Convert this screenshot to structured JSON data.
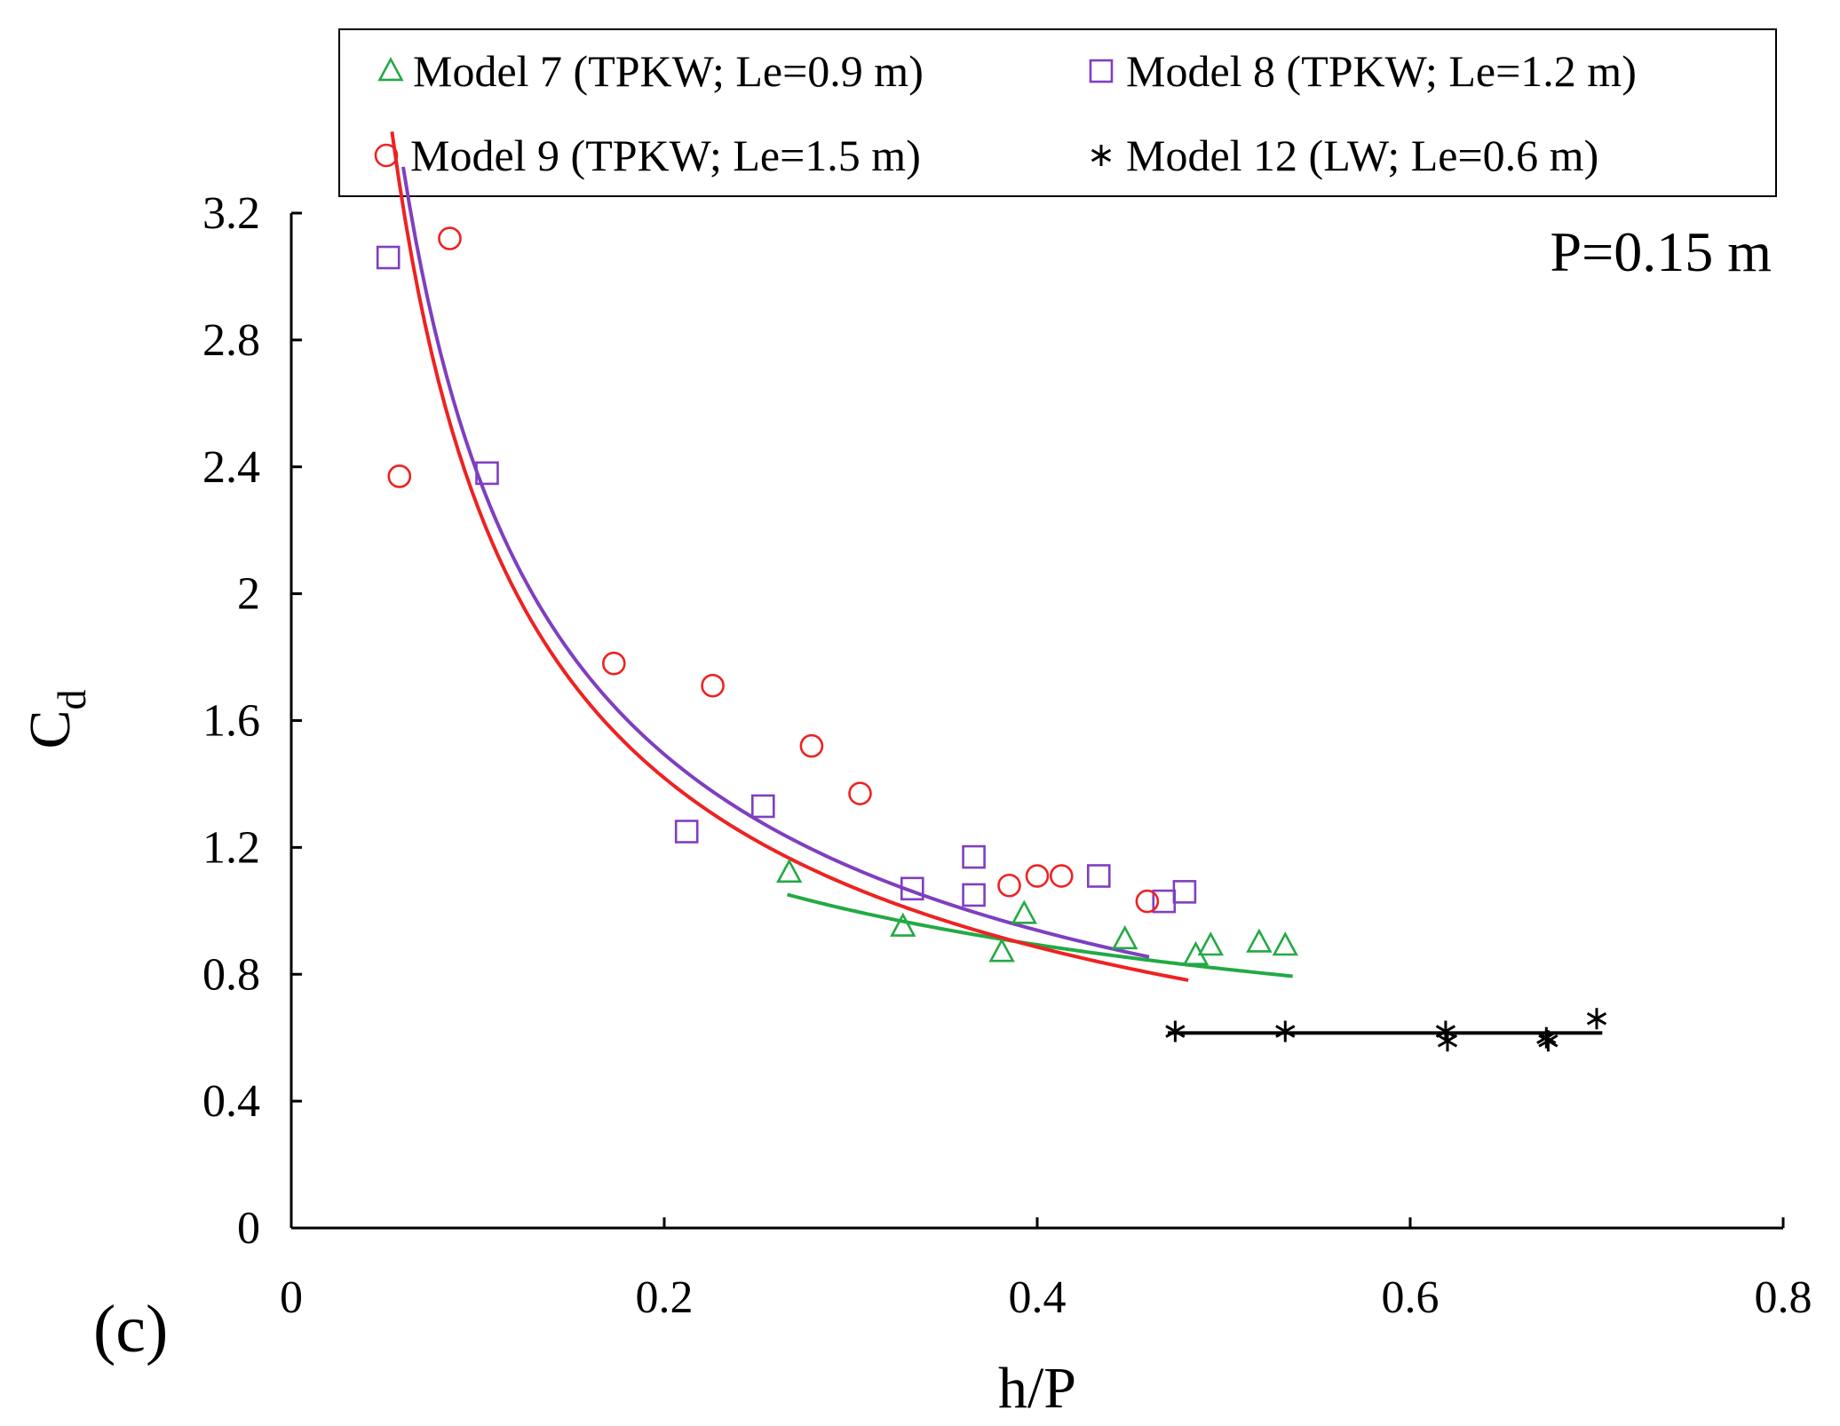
{
  "chart_data": {
    "type": "scatter",
    "panel_label": "(c)",
    "annotation": "P=0.15 m",
    "xlabel": "h/P",
    "ylabel_main": "C",
    "ylabel_sub": "d",
    "xlim": [
      0,
      0.8
    ],
    "ylim": [
      0,
      3.2
    ],
    "xticks": [
      0,
      0.2,
      0.4,
      0.6,
      0.8
    ],
    "xtick_labels": [
      "0",
      "0.2",
      "0.4",
      "0.6",
      "0.8"
    ],
    "yticks": [
      0,
      0.4,
      0.8,
      1.2,
      1.6,
      2,
      2.4,
      2.8,
      3.2
    ],
    "ytick_labels": [
      "0",
      "0.4",
      "0.8",
      "1.2",
      "1.6",
      "2",
      "2.4",
      "2.8",
      "3.2"
    ],
    "legend_location": "top",
    "series": [
      {
        "id": "model7",
        "name": "Model 7 (TPKW; Le=0.9 m)",
        "marker": "triangle",
        "color": "#22aa44",
        "points": [
          [
            0.267,
            1.12
          ],
          [
            0.328,
            0.95
          ],
          [
            0.381,
            0.87
          ],
          [
            0.393,
            0.99
          ],
          [
            0.447,
            0.91
          ],
          [
            0.485,
            0.86
          ],
          [
            0.493,
            0.89
          ],
          [
            0.519,
            0.9
          ],
          [
            0.533,
            0.89
          ]
        ],
        "fit": {
          "kind": "power",
          "a": 0.619,
          "b": -0.4,
          "x_range": [
            0.266,
            0.537
          ]
        }
      },
      {
        "id": "model8",
        "name": "Model 8 (TPKW; Le=1.2 m)",
        "marker": "square",
        "color": "#7f3fbf",
        "points": [
          [
            0.052,
            3.06
          ],
          [
            0.105,
            2.38
          ],
          [
            0.212,
            1.25
          ],
          [
            0.253,
            1.33
          ],
          [
            0.333,
            1.07
          ],
          [
            0.366,
            1.17
          ],
          [
            0.366,
            1.05
          ],
          [
            0.433,
            1.11
          ],
          [
            0.468,
            1.03
          ],
          [
            0.479,
            1.06
          ]
        ],
        "fit": {
          "kind": "power",
          "a": 0.508,
          "b": -0.67,
          "x_range": [
            0.06,
            0.46
          ]
        }
      },
      {
        "id": "model9",
        "name": "Model 9 (TPKW; Le=1.5 m)",
        "marker": "circle",
        "color": "#ee2222",
        "points": [
          [
            0.058,
            2.37
          ],
          [
            0.085,
            3.12
          ],
          [
            0.173,
            1.78
          ],
          [
            0.226,
            1.71
          ],
          [
            0.279,
            1.52
          ],
          [
            0.305,
            1.37
          ],
          [
            0.385,
            1.08
          ],
          [
            0.4,
            1.11
          ],
          [
            0.413,
            1.11
          ],
          [
            0.459,
            1.03
          ]
        ],
        "fit": {
          "kind": "power",
          "a": 0.475,
          "b": -0.68,
          "x_range": [
            0.054,
            0.481
          ]
        }
      },
      {
        "id": "model12",
        "name": "Model 12 (LW; Le=0.6 m)",
        "marker": "star",
        "color": "#000000",
        "points": [
          [
            0.474,
            0.62
          ],
          [
            0.533,
            0.62
          ],
          [
            0.619,
            0.62
          ],
          [
            0.62,
            0.59
          ],
          [
            0.673,
            0.6
          ],
          [
            0.674,
            0.59
          ],
          [
            0.7,
            0.66
          ]
        ],
        "fit": {
          "kind": "linear",
          "slope": 0.0,
          "intercept": 0.615,
          "x_range": [
            0.47,
            0.703
          ]
        }
      }
    ]
  },
  "colors": {
    "axis": "#000000",
    "background": "#ffffff"
  }
}
